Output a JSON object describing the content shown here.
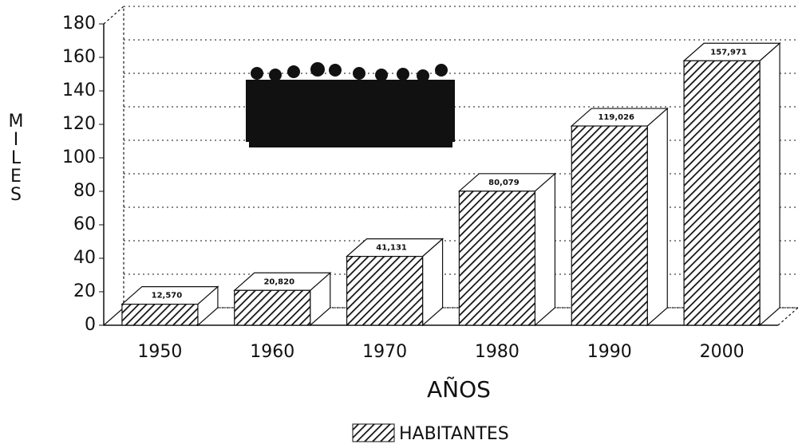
{
  "chart_data": {
    "type": "bar",
    "x_label": "AÑOS",
    "y_label": "MILES",
    "categories": [
      "1950",
      "1960",
      "1970",
      "1980",
      "1990",
      "2000"
    ],
    "series": [
      {
        "name": "HABITANTES",
        "color": "#111111",
        "values": [
          12.57,
          20.82,
          41.131,
          80.079,
          119.026,
          157.971
        ],
        "value_labels": [
          "12,570",
          "20,820",
          "41,131",
          "80,079",
          "119,026",
          "157,971"
        ]
      }
    ],
    "ylim": [
      0,
      180
    ],
    "yticks": [
      0,
      20,
      40,
      60,
      80,
      100,
      120,
      140,
      160,
      180
    ],
    "grid": true
  }
}
